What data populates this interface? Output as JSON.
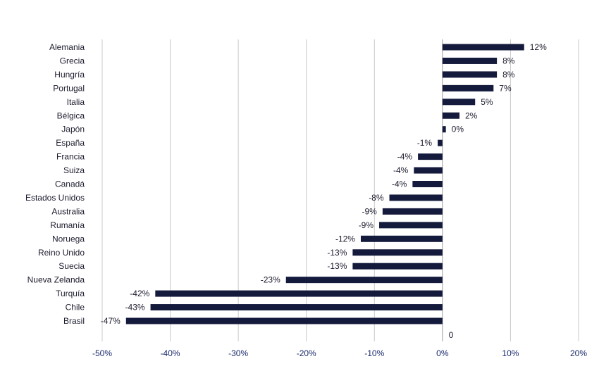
{
  "chart_data": {
    "type": "bar",
    "orientation": "horizontal",
    "title": "",
    "xlabel": "",
    "ylabel": "",
    "xlim": [
      -50,
      20
    ],
    "grid": true,
    "legend": "none",
    "bar_color": "#141a3c",
    "categories": [
      "Alemania",
      "Grecia",
      "Hungría",
      "Portugal",
      "Italia",
      "Bélgica",
      "Japón",
      "España",
      "Francia",
      "Suiza",
      "Canadá",
      "Estados Unidos",
      "Australia",
      "Rumanía",
      "Noruega",
      "Reino Unido",
      "Suecia",
      "Nueva Zelanda",
      "Turquía",
      "Chile",
      "Brasil"
    ],
    "values": [
      12,
      8,
      8,
      7.5,
      4.8,
      2.5,
      0.5,
      -0.7,
      -3.6,
      -4.2,
      -4.4,
      -7.8,
      -8.8,
      -9.3,
      -12,
      -13.2,
      -13.2,
      -23,
      -42.2,
      -42.9,
      -46.5
    ],
    "data_labels": [
      "12%",
      "8%",
      "8%",
      "7%",
      "5%",
      "2%",
      "0%",
      "-1%",
      "-4%",
      "-4%",
      "-4%",
      "-8%",
      "-9%",
      "-9%",
      "-12%",
      "-13%",
      "-13%",
      "-23%",
      "-42%",
      "-43%",
      "-47%"
    ],
    "ticks": [
      -50,
      -40,
      -30,
      -20,
      -10,
      0,
      10,
      20
    ],
    "tick_labels": [
      "-50%",
      "-40%",
      "-30%",
      "-20%",
      "-10%",
      "0%",
      "10%",
      "20%"
    ],
    "annotations": [
      "0"
    ]
  }
}
